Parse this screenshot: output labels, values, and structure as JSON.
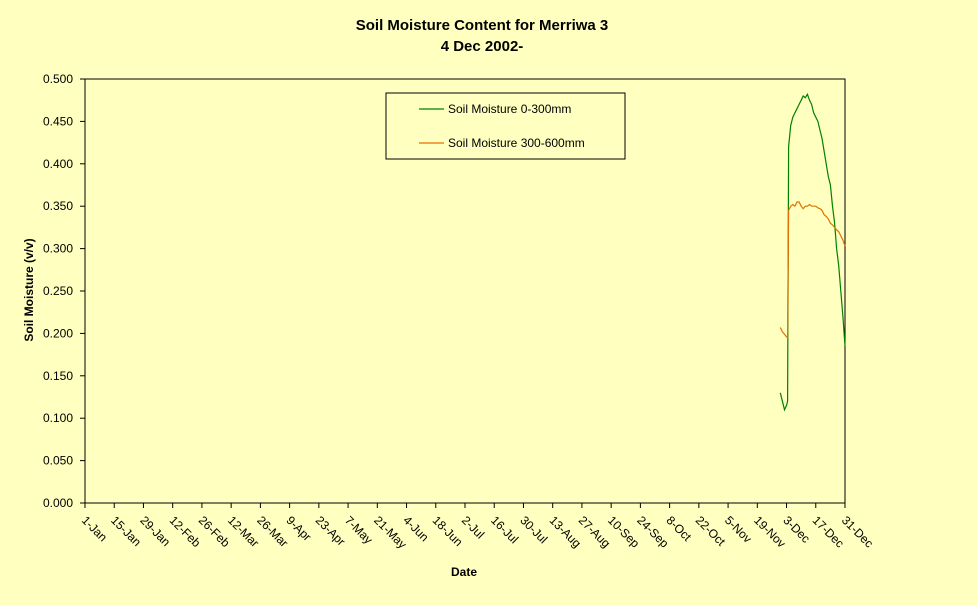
{
  "chart_data": {
    "type": "line",
    "title": "Soil Moisture Content for Merriwa 3",
    "subtitle": "4 Dec 2002-",
    "xlabel": "Date",
    "ylabel": "Soil Moisture (v/v)",
    "ylim": [
      0,
      0.5
    ],
    "y_ticks": [
      "0.000",
      "0.050",
      "0.100",
      "0.150",
      "0.200",
      "0.250",
      "0.300",
      "0.350",
      "0.400",
      "0.450",
      "0.500"
    ],
    "x_ticks": [
      "1-Jan",
      "15-Jan",
      "29-Jan",
      "12-Feb",
      "26-Feb",
      "12-Mar",
      "26-Mar",
      "9-Apr",
      "23-Apr",
      "7-May",
      "21-May",
      "4-Jun",
      "18-Jun",
      "2-Jul",
      "16-Jul",
      "30-Jul",
      "13-Aug",
      "27-Aug",
      "10-Sep",
      "24-Sep",
      "8-Oct",
      "22-Oct",
      "5-Nov",
      "19-Nov",
      "3-Dec",
      "17-Dec",
      "31-Dec"
    ],
    "grid": false,
    "legend_position": "top-right",
    "series": [
      {
        "name": "Soil Moisture 0-300mm",
        "color": "#008000",
        "x": [
          "2002-11-30",
          "2002-12-01",
          "2002-12-02",
          "2002-12-03",
          "2002-12-03T12:00",
          "2002-12-04",
          "2002-12-05",
          "2002-12-06",
          "2002-12-07",
          "2002-12-08",
          "2002-12-09",
          "2002-12-10",
          "2002-12-11",
          "2002-12-12",
          "2002-12-13",
          "2002-12-14",
          "2002-12-15",
          "2002-12-16",
          "2002-12-17",
          "2002-12-18",
          "2002-12-19",
          "2002-12-20",
          "2002-12-21",
          "2002-12-22",
          "2002-12-23",
          "2002-12-24",
          "2002-12-25",
          "2002-12-26",
          "2002-12-27",
          "2002-12-28",
          "2002-12-29",
          "2002-12-30",
          "2002-12-31"
        ],
        "values": [
          0.13,
          0.12,
          0.11,
          0.115,
          0.12,
          0.42,
          0.445,
          0.455,
          0.46,
          0.465,
          0.47,
          0.475,
          0.48,
          0.478,
          0.482,
          0.475,
          0.47,
          0.46,
          0.455,
          0.45,
          0.44,
          0.43,
          0.415,
          0.4,
          0.385,
          0.375,
          0.35,
          0.33,
          0.3,
          0.28,
          0.25,
          0.22,
          0.185
        ]
      },
      {
        "name": "Soil Moisture 300-600mm",
        "color": "#e07000",
        "x": [
          "2002-11-30",
          "2002-12-01",
          "2002-12-02",
          "2002-12-03",
          "2002-12-03T12:00",
          "2002-12-04",
          "2002-12-05",
          "2002-12-06",
          "2002-12-07",
          "2002-12-08",
          "2002-12-09",
          "2002-12-10",
          "2002-12-11",
          "2002-12-12",
          "2002-12-13",
          "2002-12-14",
          "2002-12-15",
          "2002-12-16",
          "2002-12-17",
          "2002-12-18",
          "2002-12-19",
          "2002-12-20",
          "2002-12-21",
          "2002-12-22",
          "2002-12-23",
          "2002-12-24",
          "2002-12-25",
          "2002-12-26",
          "2002-12-27",
          "2002-12-28",
          "2002-12-29",
          "2002-12-30",
          "2002-12-31"
        ],
        "values": [
          0.207,
          0.202,
          0.199,
          0.196,
          0.195,
          0.345,
          0.35,
          0.352,
          0.35,
          0.355,
          0.355,
          0.35,
          0.347,
          0.35,
          0.35,
          0.352,
          0.35,
          0.35,
          0.35,
          0.348,
          0.347,
          0.345,
          0.34,
          0.338,
          0.335,
          0.33,
          0.328,
          0.325,
          0.322,
          0.32,
          0.315,
          0.31,
          0.303
        ]
      }
    ]
  }
}
